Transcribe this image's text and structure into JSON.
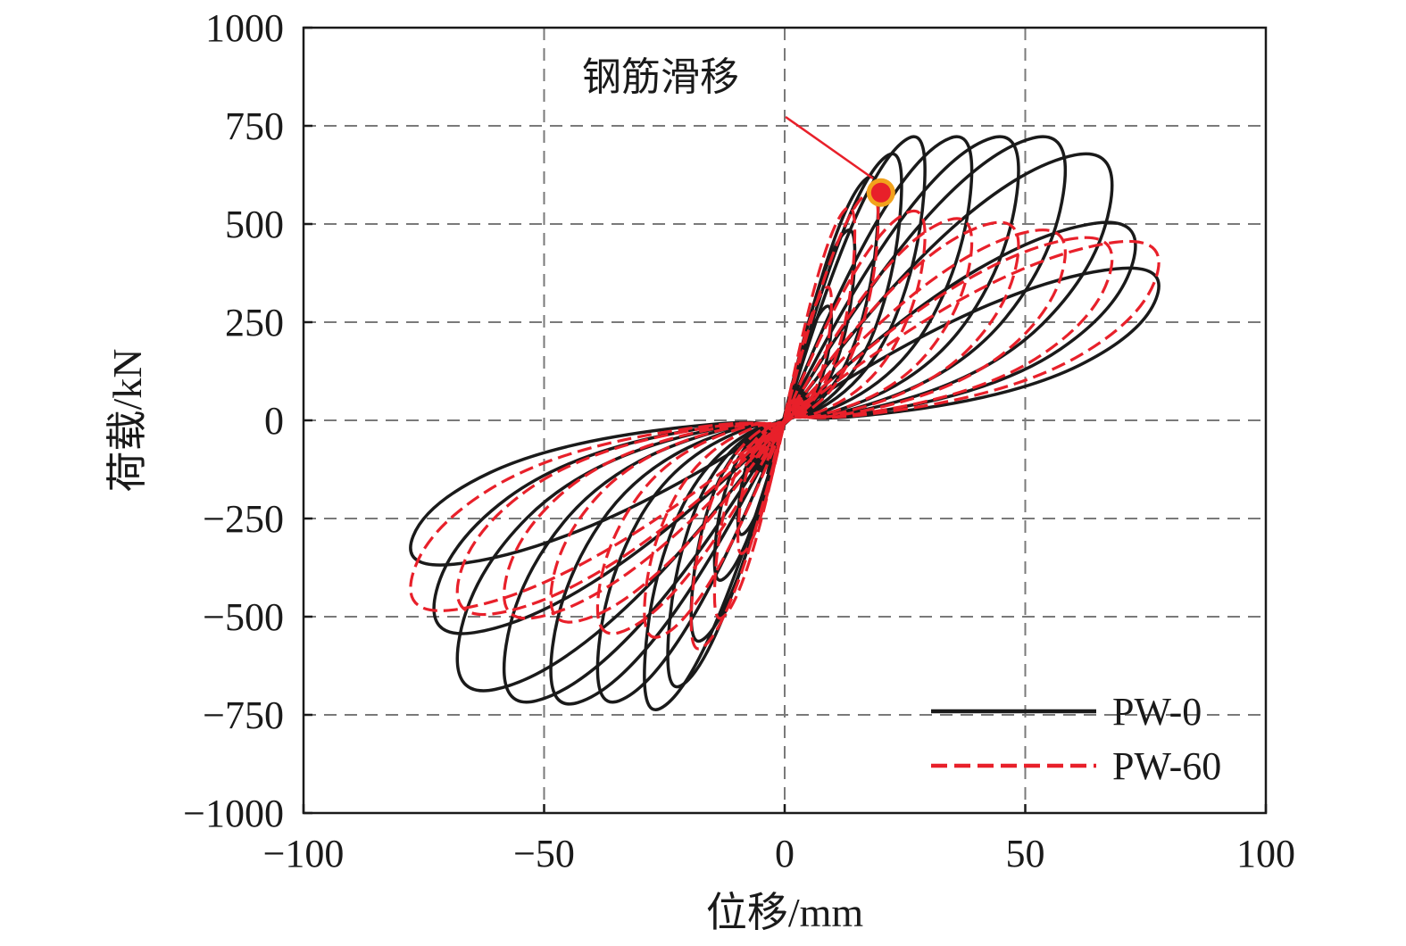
{
  "chart_data": {
    "type": "line",
    "title": "",
    "xlabel": "位移/mm",
    "ylabel": "荷载/kN",
    "xlim": [
      -100,
      100
    ],
    "ylim": [
      -1000,
      1000
    ],
    "x_ticks": [
      "−100",
      "−50",
      "0",
      "50",
      "100"
    ],
    "y_ticks": [
      "1000",
      "750",
      "500",
      "250",
      "0",
      "−250",
      "−500",
      "−750",
      "−1000"
    ],
    "grid": true,
    "legend_position": "bottom-right",
    "annotation": {
      "text": "钢筋滑移",
      "point": [
        20,
        580
      ],
      "marker_color": "#e8202a",
      "marker_ring_color": "#f2a21c"
    },
    "series": [
      {
        "name": "PW-0",
        "style": "solid",
        "color": "#1a1a1a",
        "cycles": [
          {
            "peak_disp": 10,
            "peak_pos": 300,
            "peak_neg": -300
          },
          {
            "peak_disp": 15,
            "peak_pos": 500,
            "peak_neg": -420
          },
          {
            "peak_disp": 20,
            "peak_pos": 640,
            "peak_neg": -580
          },
          {
            "peak_disp": 25,
            "peak_pos": 700,
            "peak_neg": -700
          },
          {
            "peak_disp": 30,
            "peak_pos": 745,
            "peak_neg": -760
          },
          {
            "peak_disp": 40,
            "peak_pos": 745,
            "peak_neg": -740
          },
          {
            "peak_disp": 50,
            "peak_pos": 745,
            "peak_neg": -745
          },
          {
            "peak_disp": 60,
            "peak_pos": 745,
            "peak_neg": -740
          },
          {
            "peak_disp": 70,
            "peak_pos": 700,
            "peak_neg": -710
          },
          {
            "peak_disp": 75,
            "peak_pos": 520,
            "peak_neg": -560
          },
          {
            "peak_disp": 80,
            "peak_pos": 400,
            "peak_neg": -380
          }
        ]
      },
      {
        "name": "PW-60",
        "style": "dashed",
        "color": "#e8202a",
        "cycles": [
          {
            "peak_disp": 10,
            "peak_pos": 350,
            "peak_neg": -350
          },
          {
            "peak_disp": 15,
            "peak_pos": 560,
            "peak_neg": -520
          },
          {
            "peak_disp": 20,
            "peak_pos": 600,
            "peak_neg": -600
          },
          {
            "peak_disp": 30,
            "peak_pos": 550,
            "peak_neg": -570
          },
          {
            "peak_disp": 40,
            "peak_pos": 530,
            "peak_neg": -560
          },
          {
            "peak_disp": 50,
            "peak_pos": 520,
            "peak_neg": -530
          },
          {
            "peak_disp": 60,
            "peak_pos": 500,
            "peak_neg": -520
          },
          {
            "peak_disp": 70,
            "peak_pos": 480,
            "peak_neg": -510
          },
          {
            "peak_disp": 80,
            "peak_pos": 470,
            "peak_neg": -500
          }
        ]
      }
    ]
  }
}
